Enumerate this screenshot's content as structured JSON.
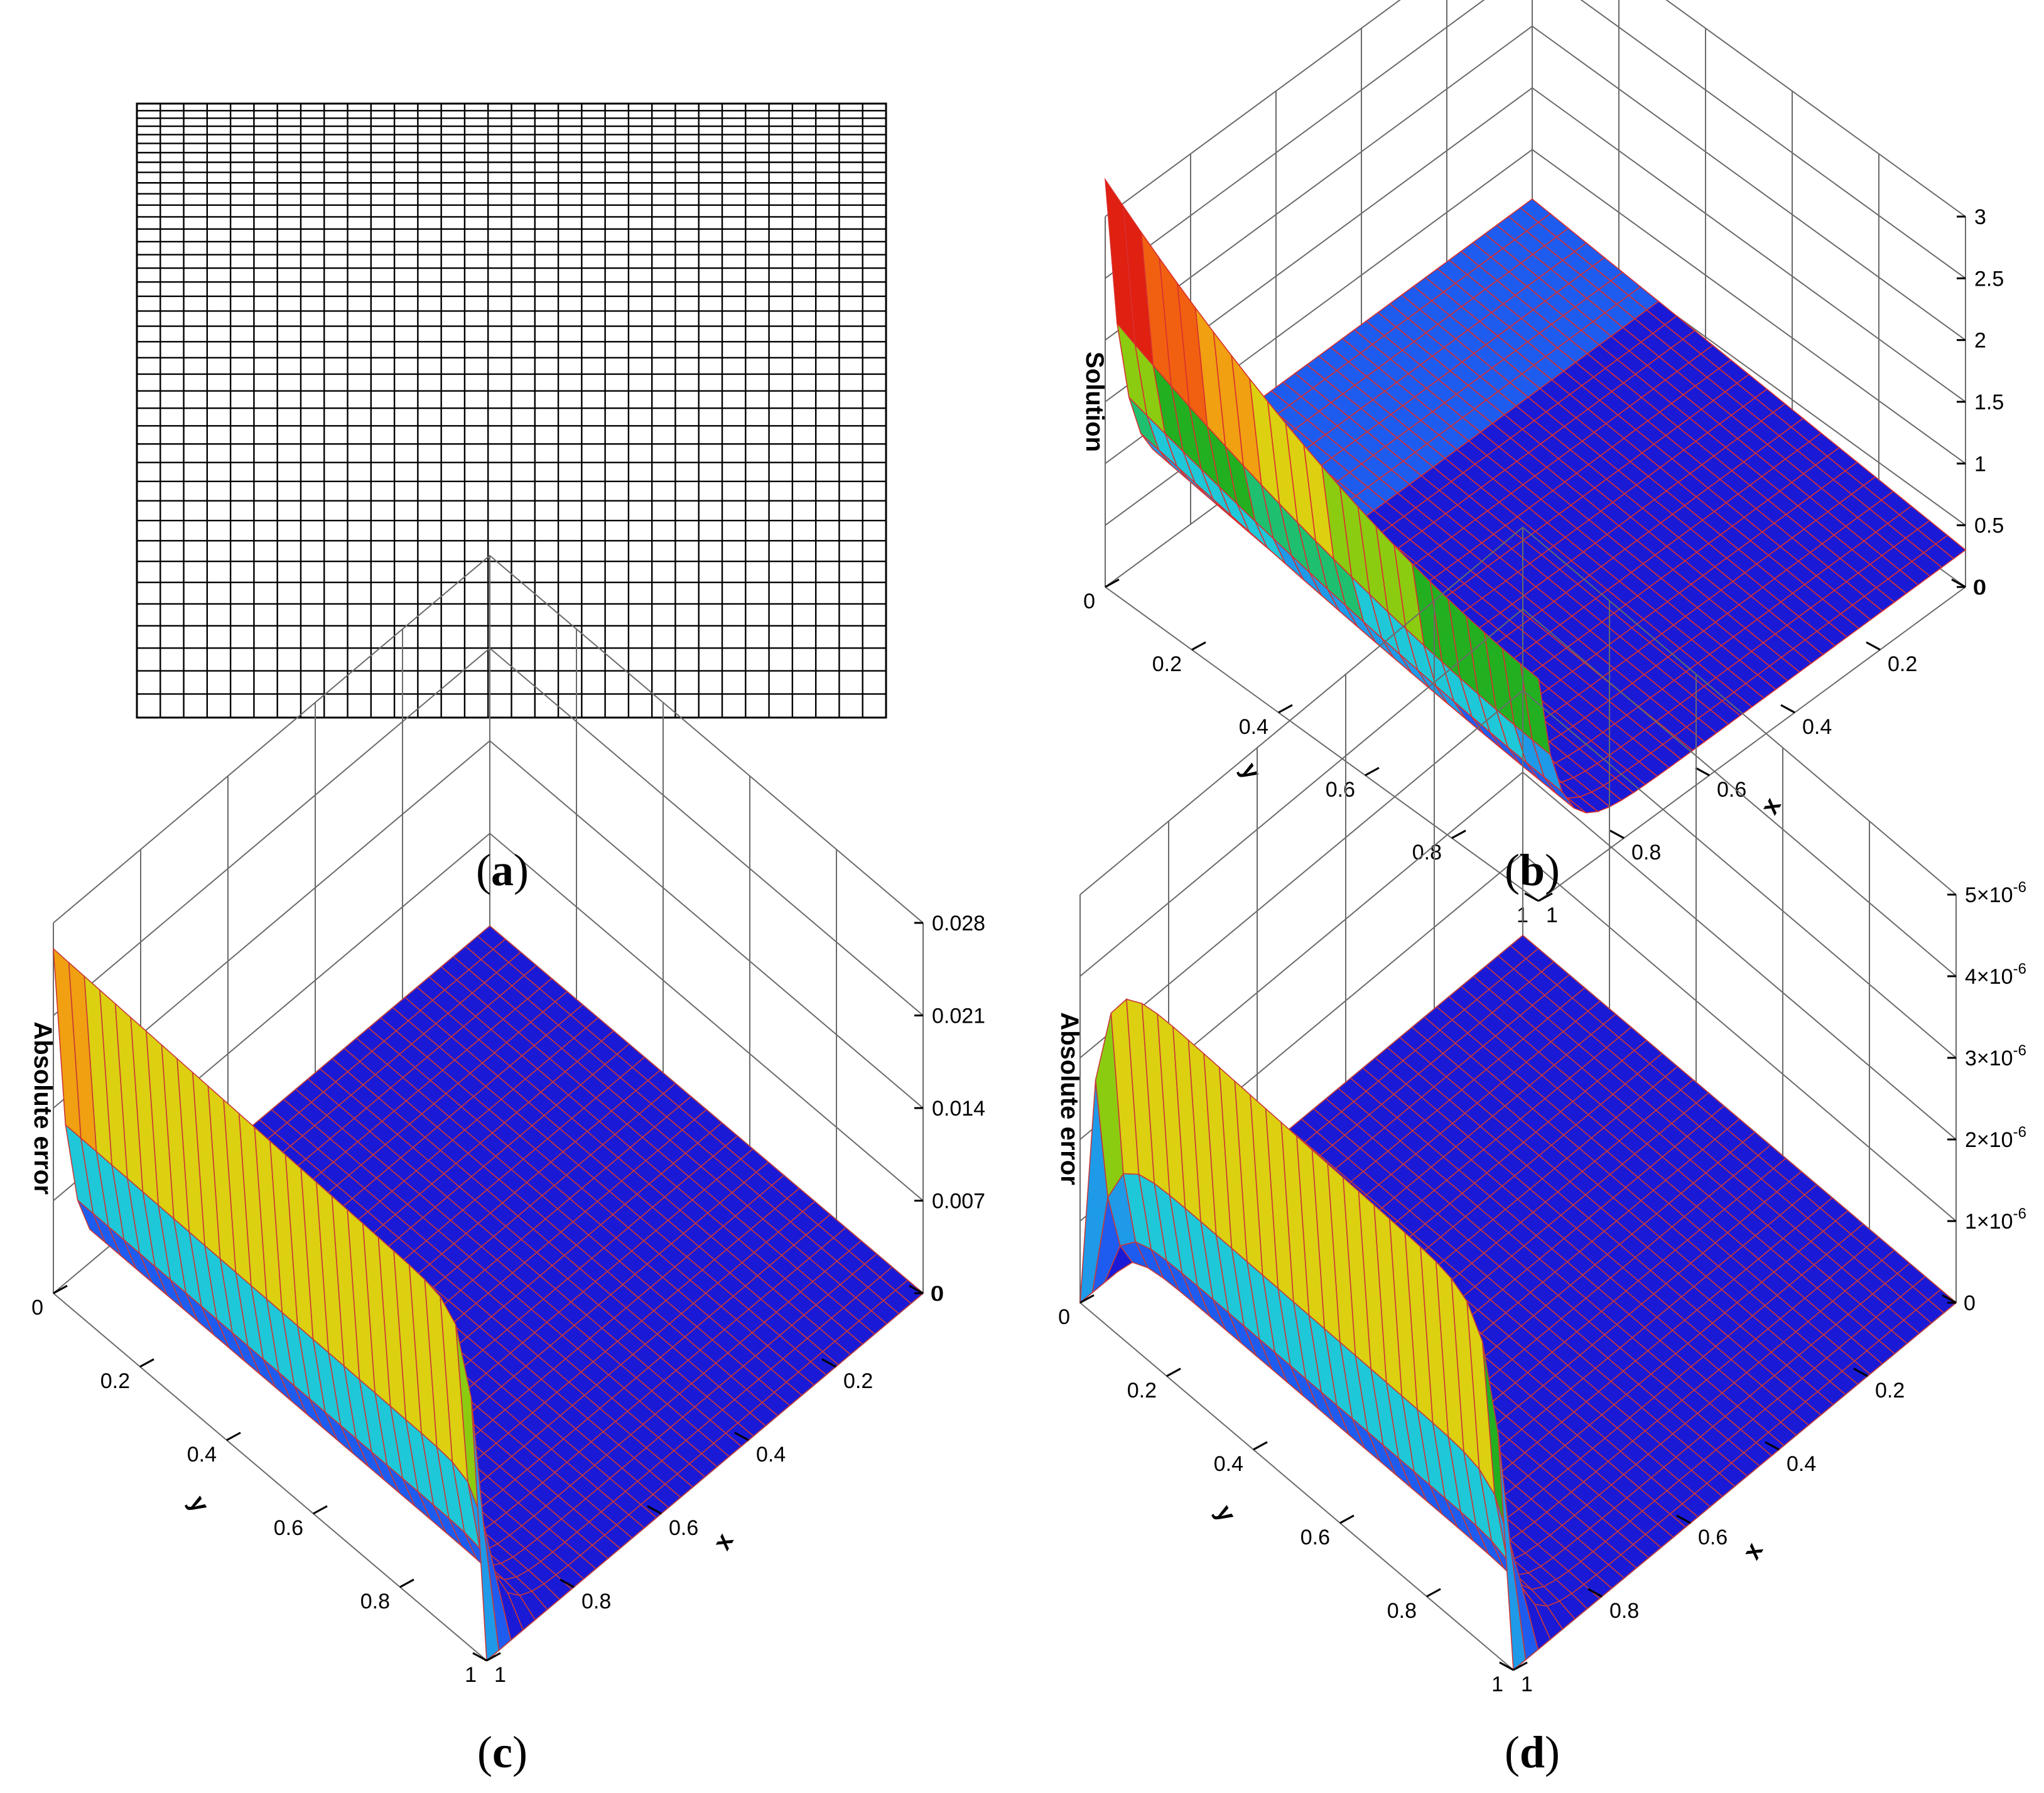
{
  "panels": [
    {
      "id": "a",
      "caption": "a",
      "kind": "mesh",
      "mesh": {
        "nx": 32,
        "ny": 40,
        "refine": "top"
      }
    },
    {
      "id": "b",
      "caption": "b",
      "kind": "surface",
      "chart_data": {
        "type": "surface3d",
        "zlabel": "Solution",
        "xlabel": "x",
        "ylabel": "y",
        "z_ticks": [
          "0",
          "0.5",
          "1",
          "1.5",
          "2",
          "2.5",
          "3"
        ],
        "z_tick_values": [
          0,
          0.5,
          1,
          1.5,
          2,
          2.5,
          3
        ],
        "zlim": [
          0,
          3
        ],
        "x_ticks": [
          "0",
          "0.2",
          "0.4",
          "0.6",
          "0.8",
          "1"
        ],
        "y_ticks": [
          "0",
          "0.2",
          "0.4",
          "0.6",
          "0.8",
          "1"
        ],
        "surface": {
          "description_values": {
            "base_value": 0.3,
            "max_value": 2.7,
            "layer_edge": "y = 1"
          }
        }
      }
    },
    {
      "id": "c",
      "caption": "c",
      "kind": "error",
      "chart_data": {
        "type": "surface3d",
        "zlabel": "Absolute error",
        "xlabel": "x",
        "ylabel": "y",
        "z_ticks": [
          "0",
          "0.007",
          "0.014",
          "0.021",
          "0.028"
        ],
        "z_tick_values": [
          0,
          0.007,
          0.014,
          0.021,
          0.028
        ],
        "zlim": [
          0,
          0.028
        ],
        "x_ticks": [
          "0",
          "0.2",
          "0.4",
          "0.6",
          "0.8",
          "1"
        ],
        "y_ticks": [
          "0",
          "0.2",
          "0.4",
          "0.6",
          "0.8",
          "1"
        ],
        "peak": 0.026
      }
    },
    {
      "id": "d",
      "caption": "d",
      "kind": "error",
      "chart_data": {
        "type": "surface3d",
        "zlabel": "Absolute error",
        "xlabel": "x",
        "ylabel": "y",
        "z_ticks": [
          "",
          "1×10",
          "2×10",
          "3×10",
          "4×10",
          "5×10"
        ],
        "z_tick_exp": "-6",
        "z_tick_values": [
          0,
          1e-06,
          2e-06,
          3e-06,
          4e-06,
          5e-06
        ],
        "zlim": [
          0,
          5e-06
        ],
        "x_ticks": [
          "0",
          "0.2",
          "0.4",
          "0.6",
          "0.8",
          "1"
        ],
        "y_ticks": [
          "0",
          "0.2",
          "0.4",
          "0.6",
          "0.8",
          "1"
        ],
        "peak": 4.4e-06
      }
    }
  ],
  "captions": {
    "a": "a",
    "b": "b",
    "c": "c",
    "d": "d"
  }
}
